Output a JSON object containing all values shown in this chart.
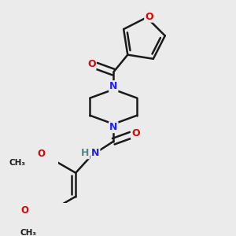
{
  "background_color": "#ebebeb",
  "bond_color": "#1a1a1a",
  "atom_colors": {
    "N": "#2020ff",
    "O": "#e00000",
    "H": "#4a8a8a",
    "C": "#1a1a1a"
  },
  "bond_width": 1.8,
  "figsize": [
    3.0,
    3.0
  ],
  "dpi": 100
}
